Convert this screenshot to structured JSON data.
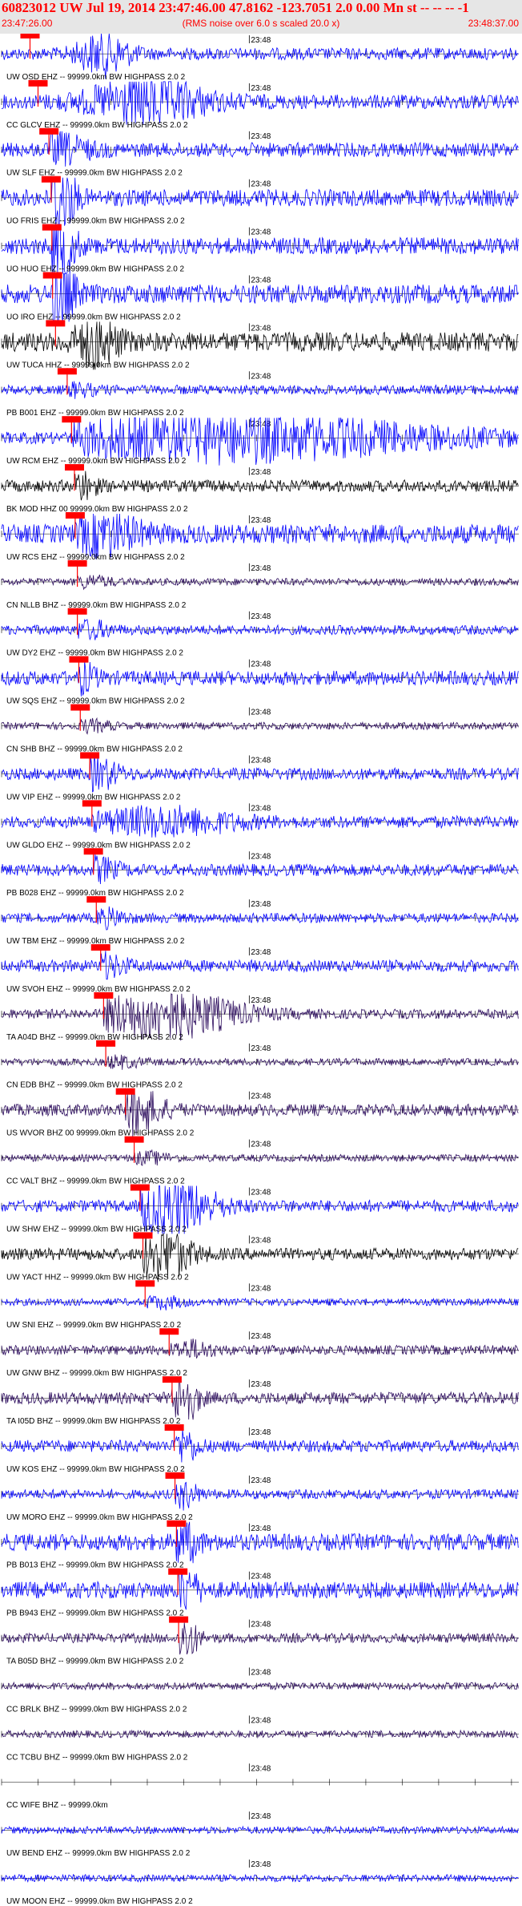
{
  "header": {
    "title": "60823012 UW Jul 19, 2014 23:47:46.00   47.8162 -123.7051  2.0 0.00 Mn st -- -- -- -1",
    "start_time": "23:47:26.00",
    "note": "(RMS noise over 6.0 s scaled 20.0 x)",
    "end_time": "23:48:37.00"
  },
  "colors": {
    "trace_blue": "#0000ff",
    "trace_black": "#000000",
    "trace_purple": "#2a0a5c",
    "pick_red": "#ff0000",
    "header_bg": "#e6e6e6"
  },
  "chart_data": {
    "type": "line",
    "title": "60823012 UW Jul 19, 2014 23:47:46.00   47.8162 -123.7051  2.0 0.00 Mn st -- -- -- -1",
    "time_axis": {
      "start": "23:47:26.00",
      "end": "23:48:37.00",
      "mid_label": "23:48"
    },
    "series": [
      {
        "label": "UW OSD EHZ -- 99999.0km BW  HIGHPASS  2.0  2",
        "color": "blue",
        "pick_s": 3.9,
        "amp": 0.25,
        "burst": [
          14,
          3.5,
          0.8
        ]
      },
      {
        "label": "CC GLCV EHZ -- 99999.0km BW  HIGHPASS  2.0  2",
        "color": "blue",
        "pick_s": 5.0,
        "amp": 0.3,
        "burst": [
          20,
          8,
          0.9
        ]
      },
      {
        "label": "UW SLF EHZ -- 99999.0km BW  HIGHPASS  2.0  2",
        "color": "blue",
        "pick_s": 6.5,
        "amp": 0.3,
        "burst": [
          8,
          4,
          0.5
        ]
      },
      {
        "label": "UO FRIS EHZ -- 99999.0km BW  HIGHPASS  2.0  2",
        "color": "blue",
        "pick_s": 6.8,
        "amp": 0.35,
        "burst": [
          8,
          2,
          1.6
        ]
      },
      {
        "label": "UO HUO EHZ -- 99999.0km BW  HIGHPASS  2.0  2",
        "color": "blue",
        "pick_s": 6.9,
        "amp": 0.35,
        "burst": [
          8,
          2,
          1.6
        ]
      },
      {
        "label": "UO IRO EHZ -- 99999.0km BW  HIGHPASS  2.0  2",
        "color": "blue",
        "pick_s": 7.0,
        "amp": 0.4,
        "burst": [
          8,
          2,
          1.5
        ]
      },
      {
        "label": "UW TUCA HHZ -- 99999.0km BW  HIGHPASS  2.0  2",
        "color": "black",
        "pick_s": 7.4,
        "amp": 0.4,
        "burst": [
          13,
          3,
          0.9
        ]
      },
      {
        "label": "PB B001 EHZ -- 99999.0km BW  HIGHPASS  2.0  2",
        "color": "blue",
        "pick_s": 9.0,
        "amp": 0.2,
        "burst": [
          10,
          3,
          0.2
        ]
      },
      {
        "label": "UW RCM EHZ -- 99999.0km BW  HIGHPASS  2.0  2",
        "color": "blue",
        "pick_s": 9.6,
        "amp": 0.25,
        "burst": [
          30,
          30,
          0.9
        ]
      },
      {
        "label": "BK MOD HHZ 00 99999.0km BW  HIGHPASS  2.0  2",
        "color": "black",
        "pick_s": 10.0,
        "amp": 0.25,
        "burst": [
          11,
          2,
          0.5
        ]
      },
      {
        "label": "UW RCS EHZ -- 99999.0km BW  HIGHPASS  2.0  2",
        "color": "blue",
        "pick_s": 10.1,
        "amp": 0.4,
        "burst": [
          14,
          5,
          0.7
        ]
      },
      {
        "label": "CN NLLB BHZ -- 99999.0km BW  HIGHPASS  2.0  2",
        "color": "purple",
        "pick_s": 10.4,
        "amp": 0.15,
        "burst": [
          12,
          3,
          0.2
        ]
      },
      {
        "label": "UW DY2 EHZ -- 99999.0km BW  HIGHPASS  2.0  2",
        "color": "blue",
        "pick_s": 10.4,
        "amp": 0.2,
        "burst": [
          12,
          3,
          0.3
        ]
      },
      {
        "label": "UW SQS EHZ -- 99999.0km BW  HIGHPASS  2.0  2",
        "color": "blue",
        "pick_s": 10.6,
        "amp": 0.3,
        "burst": [
          11,
          2,
          0.5
        ]
      },
      {
        "label": "CN SHB BHZ -- 99999.0km BW  HIGHPASS  2.0  2",
        "color": "purple",
        "pick_s": 10.8,
        "amp": 0.15,
        "burst": [
          12,
          3,
          0.2
        ]
      },
      {
        "label": "UW VIP EHZ -- 99999.0km BW  HIGHPASS  2.0  2",
        "color": "blue",
        "pick_s": 12.1,
        "amp": 0.25,
        "burst": [
          13,
          3,
          0.6
        ]
      },
      {
        "label": "UW GLDO EHZ -- 99999.0km BW  HIGHPASS  2.0  2",
        "color": "blue",
        "pick_s": 12.4,
        "amp": 0.25,
        "burst": [
          22,
          10,
          0.5
        ]
      },
      {
        "label": "PB B028 EHZ -- 99999.0km BW  HIGHPASS  2.0  2",
        "color": "blue",
        "pick_s": 12.6,
        "amp": 0.25,
        "burst": [
          13,
          3,
          0.4
        ]
      },
      {
        "label": "UW TBM EHZ -- 99999.0km BW  HIGHPASS  2.0  2",
        "color": "blue",
        "pick_s": 13.0,
        "amp": 0.2,
        "burst": [
          14,
          3,
          0.3
        ]
      },
      {
        "label": "UW SVOH EHZ -- 99999.0km BW  HIGHPASS  2.0  2",
        "color": "blue",
        "pick_s": 13.6,
        "amp": 0.25,
        "burst": [
          14,
          3,
          0.4
        ]
      },
      {
        "label": "TA A04D BHZ -- 99999.0km BW  HIGHPASS  2.0  2",
        "color": "purple",
        "pick_s": 14.0,
        "amp": 0.2,
        "burst": [
          22,
          10,
          1.0
        ]
      },
      {
        "label": "CN EDB BHZ -- 99999.0km BW  HIGHPASS  2.0  2",
        "color": "purple",
        "pick_s": 14.3,
        "amp": 0.15,
        "burst": [
          16,
          3,
          0.2
        ]
      },
      {
        "label": "US WVOR BHZ 00 99999.0km BW  HIGHPASS  2.0  2",
        "color": "purple",
        "pick_s": 17.0,
        "amp": 0.25,
        "burst": [
          18,
          4,
          0.9
        ]
      },
      {
        "label": "CC VALT BHZ -- 99999.0km BW  HIGHPASS  2.0  2",
        "color": "purple",
        "pick_s": 18.2,
        "amp": 0.15,
        "burst": [
          20,
          3,
          0.2
        ]
      },
      {
        "label": "UW SHW EHZ -- 99999.0km BW  HIGHPASS  2.0  2",
        "color": "blue",
        "pick_s": 19.0,
        "amp": 0.25,
        "burst": [
          23,
          6,
          1.2
        ]
      },
      {
        "label": "UW YACT HHZ -- 99999.0km BW  HIGHPASS  2.0  2",
        "color": "black",
        "pick_s": 19.4,
        "amp": 0.25,
        "burst": [
          22,
          4,
          1.0
        ]
      },
      {
        "label": "UW SNI EHZ -- 99999.0km BW  HIGHPASS  2.0  2",
        "color": "blue",
        "pick_s": 19.7,
        "amp": 0.15,
        "burst": [
          22,
          3,
          0.2
        ]
      },
      {
        "label": "UW GNW BHZ -- 99999.0km BW  HIGHPASS  2.0  2",
        "color": "purple",
        "pick_s": 23.0,
        "amp": 0.2,
        "burst": [
          26,
          3,
          0.3
        ]
      },
      {
        "label": "TA I05D BHZ -- 99999.0km BW  HIGHPASS  2.0  2",
        "color": "purple",
        "pick_s": 23.4,
        "amp": 0.25,
        "burst": [
          25,
          2,
          1.0
        ]
      },
      {
        "label": "UW KOS EHZ -- 99999.0km BW  HIGHPASS  2.0  2",
        "color": "blue",
        "pick_s": 23.7,
        "amp": 0.25,
        "burst": [
          25,
          2,
          0.6
        ]
      },
      {
        "label": "UW MORO EHZ -- 99999.0km BW  HIGHPASS  2.0  2",
        "color": "blue",
        "pick_s": 23.8,
        "amp": 0.2,
        "burst": [
          25,
          2,
          0.5
        ]
      },
      {
        "label": "PB B013 EHZ -- 99999.0km BW  HIGHPASS  2.0  2",
        "color": "blue",
        "pick_s": 24.0,
        "amp": 0.35,
        "burst": [
          25,
          2,
          0.8
        ]
      },
      {
        "label": "PB B943 EHZ -- 99999.0km BW  HIGHPASS  2.0  2",
        "color": "blue",
        "pick_s": 24.2,
        "amp": 0.35,
        "burst": [
          25,
          2,
          0.8
        ]
      },
      {
        "label": "TA B05D BHZ -- 99999.0km BW  HIGHPASS  2.0  2",
        "color": "purple",
        "pick_s": 24.3,
        "amp": 0.2,
        "burst": [
          25,
          2,
          0.8
        ]
      },
      {
        "label": "CC BRLK BHZ -- 99999.0km BW  HIGHPASS  2.0  2",
        "color": "purple",
        "pick_s": null,
        "amp": 0.15,
        "burst": [
          0,
          1,
          0
        ]
      },
      {
        "label": "CC TCBU BHZ -- 99999.0km BW  HIGHPASS  2.0  2",
        "color": "purple",
        "pick_s": null,
        "amp": 0.15,
        "burst": [
          0,
          1,
          0
        ]
      },
      {
        "label": "CC WIFE BHZ -- 99999.0km",
        "color": "purple",
        "pick_s": null,
        "amp": 0.0,
        "burst": [
          0,
          1,
          0
        ]
      },
      {
        "label": "UW BEND EHZ -- 99999.0km BW  HIGHPASS  2.0  2",
        "color": "blue",
        "pick_s": null,
        "amp": 0.15,
        "burst": [
          0,
          1,
          0
        ]
      },
      {
        "label": "UW MOON EHZ -- 99999.0km BW  HIGHPASS  2.0  2",
        "color": "blue",
        "pick_s": null,
        "amp": 0.15,
        "burst": [
          0,
          1,
          0
        ]
      }
    ]
  }
}
